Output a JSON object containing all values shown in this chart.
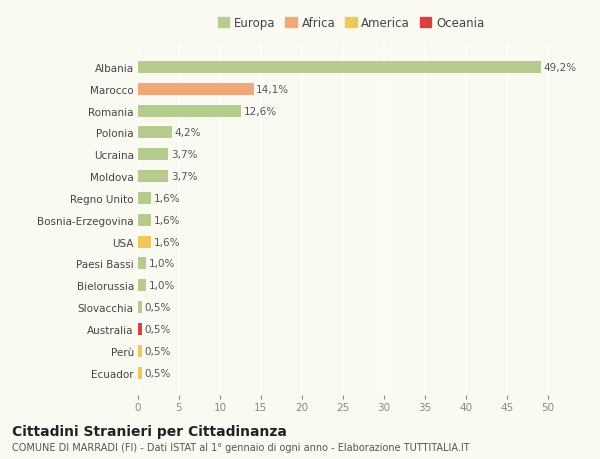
{
  "categories": [
    "Albania",
    "Marocco",
    "Romania",
    "Polonia",
    "Ucraina",
    "Moldova",
    "Regno Unito",
    "Bosnia-Erzegovina",
    "USA",
    "Paesi Bassi",
    "Bielorussia",
    "Slovacchia",
    "Australia",
    "Perù",
    "Ecuador"
  ],
  "values": [
    49.2,
    14.1,
    12.6,
    4.2,
    3.7,
    3.7,
    1.6,
    1.6,
    1.6,
    1.0,
    1.0,
    0.5,
    0.5,
    0.5,
    0.5
  ],
  "labels": [
    "49,2%",
    "14,1%",
    "12,6%",
    "4,2%",
    "3,7%",
    "3,7%",
    "1,6%",
    "1,6%",
    "1,6%",
    "1,0%",
    "1,0%",
    "0,5%",
    "0,5%",
    "0,5%",
    "0,5%"
  ],
  "continents": [
    "Europa",
    "Africa",
    "Europa",
    "Europa",
    "Europa",
    "Europa",
    "Europa",
    "Europa",
    "America",
    "Europa",
    "Europa",
    "Europa",
    "Oceania",
    "America",
    "America"
  ],
  "colors": {
    "Europa": "#b5cc8e",
    "Africa": "#f0a878",
    "America": "#f0c858",
    "Oceania": "#d94040"
  },
  "legend_order": [
    "Europa",
    "Africa",
    "America",
    "Oceania"
  ],
  "xlim": [
    0,
    52
  ],
  "xticks": [
    0,
    5,
    10,
    15,
    20,
    25,
    30,
    35,
    40,
    45,
    50
  ],
  "title": "Cittadini Stranieri per Cittadinanza",
  "subtitle": "COMUNE DI MARRADI (FI) - Dati ISTAT al 1° gennaio di ogni anno - Elaborazione TUTTITALIA.IT",
  "bg_color": "#fafaf2",
  "grid_color": "#ffffff",
  "bar_height": 0.55,
  "label_fontsize": 7.5,
  "category_fontsize": 7.5,
  "tick_fontsize": 7.5,
  "title_fontsize": 10,
  "subtitle_fontsize": 7,
  "legend_fontsize": 8.5
}
